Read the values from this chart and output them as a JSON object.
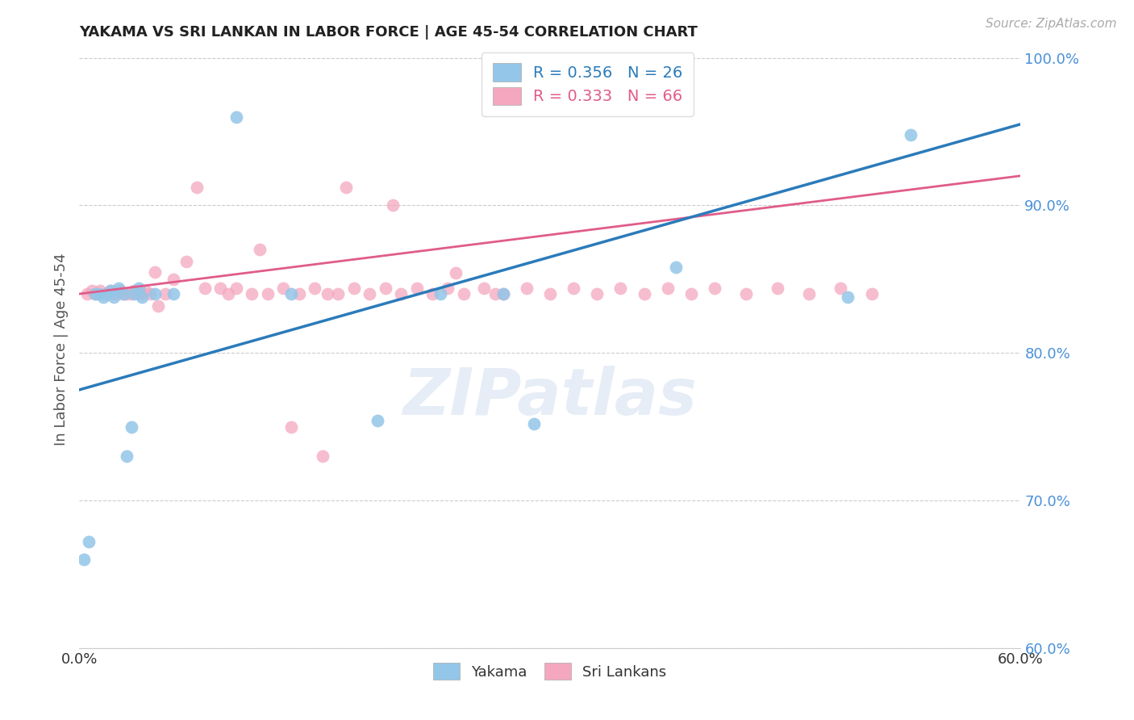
{
  "title": "YAKAMA VS SRI LANKAN IN LABOR FORCE | AGE 45-54 CORRELATION CHART",
  "source": "Source: ZipAtlas.com",
  "ylabel": "In Labor Force | Age 45-54",
  "xlim": [
    0.0,
    0.6
  ],
  "ylim": [
    0.6,
    1.005
  ],
  "xticks": [
    0.0,
    0.1,
    0.2,
    0.3,
    0.4,
    0.5,
    0.6
  ],
  "xticklabels": [
    "0.0%",
    "",
    "",
    "",
    "",
    "",
    "60.0%"
  ],
  "yticks": [
    0.6,
    0.7,
    0.8,
    0.9,
    1.0
  ],
  "yticklabels": [
    "60.0%",
    "70.0%",
    "80.0%",
    "90.0%",
    "100.0%"
  ],
  "legend_blue_label": "R = 0.356   N = 26",
  "legend_pink_label": "R = 0.333   N = 66",
  "blue_color": "#93c6e8",
  "pink_color": "#f4a7bf",
  "blue_line_color": "#2b7bba",
  "pink_line_color": "#e05c8a",
  "watermark": "ZIPatlas",
  "blue_line_x0": 0.0,
  "blue_line_y0": 0.775,
  "blue_line_x1": 0.6,
  "blue_line_y1": 0.955,
  "pink_line_x0": 0.0,
  "pink_line_y0": 0.84,
  "pink_line_x1": 0.6,
  "pink_line_y1": 0.92,
  "blue_scatter_x": [
    0.003,
    0.006,
    0.01,
    0.012,
    0.015,
    0.018,
    0.02,
    0.022,
    0.025,
    0.028,
    0.03,
    0.033,
    0.035,
    0.038,
    0.04,
    0.048,
    0.06,
    0.1,
    0.135,
    0.19,
    0.23,
    0.27,
    0.29,
    0.38,
    0.49,
    0.53
  ],
  "blue_scatter_y": [
    0.66,
    0.672,
    0.84,
    0.84,
    0.838,
    0.84,
    0.842,
    0.838,
    0.844,
    0.84,
    0.73,
    0.75,
    0.84,
    0.844,
    0.838,
    0.84,
    0.84,
    0.96,
    0.84,
    0.754,
    0.84,
    0.84,
    0.752,
    0.858,
    0.838,
    0.948
  ],
  "pink_scatter_x": [
    0.005,
    0.008,
    0.01,
    0.013,
    0.016,
    0.018,
    0.02,
    0.022,
    0.024,
    0.026,
    0.028,
    0.03,
    0.033,
    0.035,
    0.038,
    0.04,
    0.042,
    0.045,
    0.048,
    0.05,
    0.055,
    0.06,
    0.068,
    0.075,
    0.08,
    0.09,
    0.095,
    0.1,
    0.11,
    0.115,
    0.12,
    0.13,
    0.14,
    0.15,
    0.158,
    0.165,
    0.175,
    0.185,
    0.195,
    0.205,
    0.215,
    0.225,
    0.235,
    0.245,
    0.258,
    0.27,
    0.285,
    0.3,
    0.315,
    0.33,
    0.345,
    0.36,
    0.375,
    0.39,
    0.405,
    0.425,
    0.445,
    0.465,
    0.485,
    0.505,
    0.135,
    0.155,
    0.17,
    0.2,
    0.24,
    0.265
  ],
  "pink_scatter_y": [
    0.84,
    0.842,
    0.84,
    0.842,
    0.84,
    0.84,
    0.842,
    0.84,
    0.84,
    0.842,
    0.84,
    0.84,
    0.84,
    0.842,
    0.84,
    0.84,
    0.842,
    0.84,
    0.855,
    0.832,
    0.84,
    0.85,
    0.862,
    0.912,
    0.844,
    0.844,
    0.84,
    0.844,
    0.84,
    0.87,
    0.84,
    0.844,
    0.84,
    0.844,
    0.84,
    0.84,
    0.844,
    0.84,
    0.844,
    0.84,
    0.844,
    0.84,
    0.844,
    0.84,
    0.844,
    0.84,
    0.844,
    0.84,
    0.844,
    0.84,
    0.844,
    0.84,
    0.844,
    0.84,
    0.844,
    0.84,
    0.844,
    0.84,
    0.844,
    0.84,
    0.75,
    0.73,
    0.912,
    0.9,
    0.854,
    0.84
  ]
}
